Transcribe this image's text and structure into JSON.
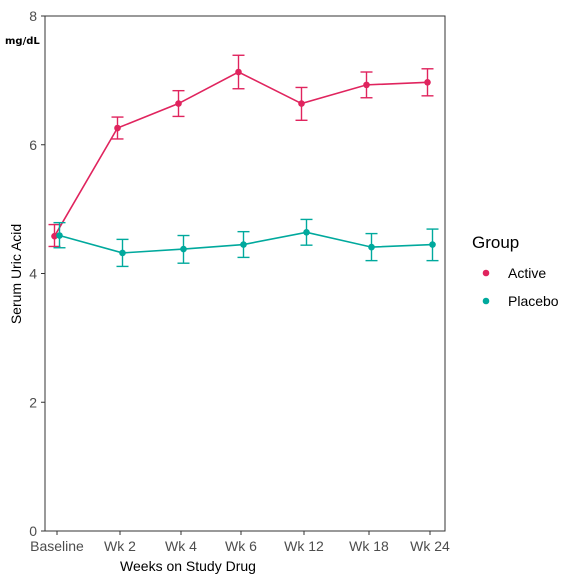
{
  "chart_data": {
    "type": "line",
    "title": "",
    "unit_label": "mg/dL",
    "xlabel": "Weeks on Study Drug",
    "ylabel": "Serum Uric Acid",
    "ylim": [
      0,
      8
    ],
    "yticks": [
      0,
      2,
      4,
      6,
      8
    ],
    "grid": false,
    "legend_placement": "right",
    "legend_title": "Group",
    "categories": [
      "Baseline",
      "Wk 2",
      "Wk 4",
      "Wk 6",
      "Wk 12",
      "Wk 18",
      "Wk 24"
    ],
    "series": [
      {
        "name": "Active",
        "color": "#e0245e",
        "values": [
          4.58,
          6.26,
          6.64,
          7.13,
          6.64,
          6.93,
          6.97
        ],
        "error_low": [
          4.42,
          6.09,
          6.44,
          6.87,
          6.38,
          6.73,
          6.76
        ],
        "error_high": [
          4.76,
          6.43,
          6.84,
          7.39,
          6.89,
          7.13,
          7.18
        ]
      },
      {
        "name": "Placebo",
        "color": "#00a99d",
        "values": [
          4.59,
          4.32,
          4.38,
          4.45,
          4.64,
          4.41,
          4.45
        ],
        "error_low": [
          4.4,
          4.11,
          4.16,
          4.25,
          4.44,
          4.2,
          4.2
        ],
        "error_high": [
          4.79,
          4.53,
          4.59,
          4.65,
          4.84,
          4.62,
          4.69
        ]
      }
    ]
  }
}
